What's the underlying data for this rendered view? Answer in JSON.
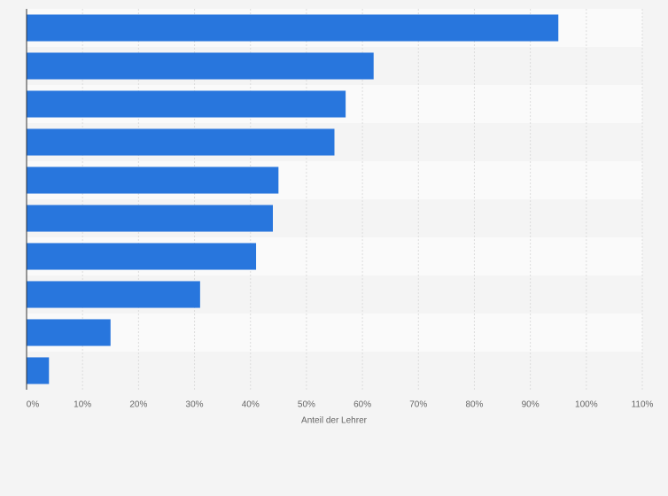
{
  "chart_data": {
    "type": "barh",
    "categories": [
      null,
      null,
      null,
      null,
      null,
      null,
      null,
      null,
      null,
      null
    ],
    "values": [
      95,
      62,
      57,
      55,
      45,
      44,
      41,
      31,
      15,
      4
    ],
    "color": "#2876dd",
    "xlabel": "Anteil der Lehrer",
    "xlim": [
      0,
      110
    ],
    "xticks": [
      {
        "value": 0,
        "label": "0%"
      },
      {
        "value": 10,
        "label": "10%"
      },
      {
        "value": 20,
        "label": "20%"
      },
      {
        "value": 30,
        "label": "30%"
      },
      {
        "value": 40,
        "label": "40%"
      },
      {
        "value": 50,
        "label": "50%"
      },
      {
        "value": 60,
        "label": "60%"
      },
      {
        "value": 70,
        "label": "70%"
      },
      {
        "value": 80,
        "label": "80%"
      },
      {
        "value": 90,
        "label": "90%"
      },
      {
        "value": 100,
        "label": "100%"
      },
      {
        "value": 110,
        "label": "110%"
      }
    ],
    "grid": true
  }
}
